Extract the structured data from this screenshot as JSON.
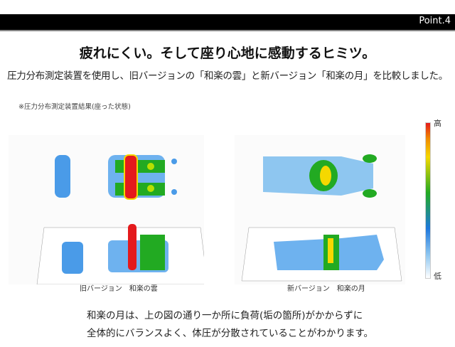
{
  "header": {
    "point_label": "Point.4"
  },
  "title": "疲れにくい。そして座り心地に感動するヒミツ。",
  "subtitle": "圧力分布測定装置を使用し、旧バージョンの「和楽の雲」と新バージョン「和楽の月」を比較しました。",
  "note": "※圧力分布測定装置結果(座った状態)",
  "colorbar": {
    "high": "高",
    "low": "低",
    "colors": [
      "#e41a1c",
      "#f08a00",
      "#f5d800",
      "#22aa22",
      "#1e78dc",
      "#8ec6f0",
      "#ffffff"
    ]
  },
  "captions": {
    "old": "旧バージョン　和楽の雲",
    "new": "新バージョン　和楽の月"
  },
  "conclusion": [
    "和楽の月は、上の図の通り一か所に負荷(垢の箇所)がかからずに",
    "全体的にバランスよく、体圧が分散されていることがわかります。"
  ]
}
